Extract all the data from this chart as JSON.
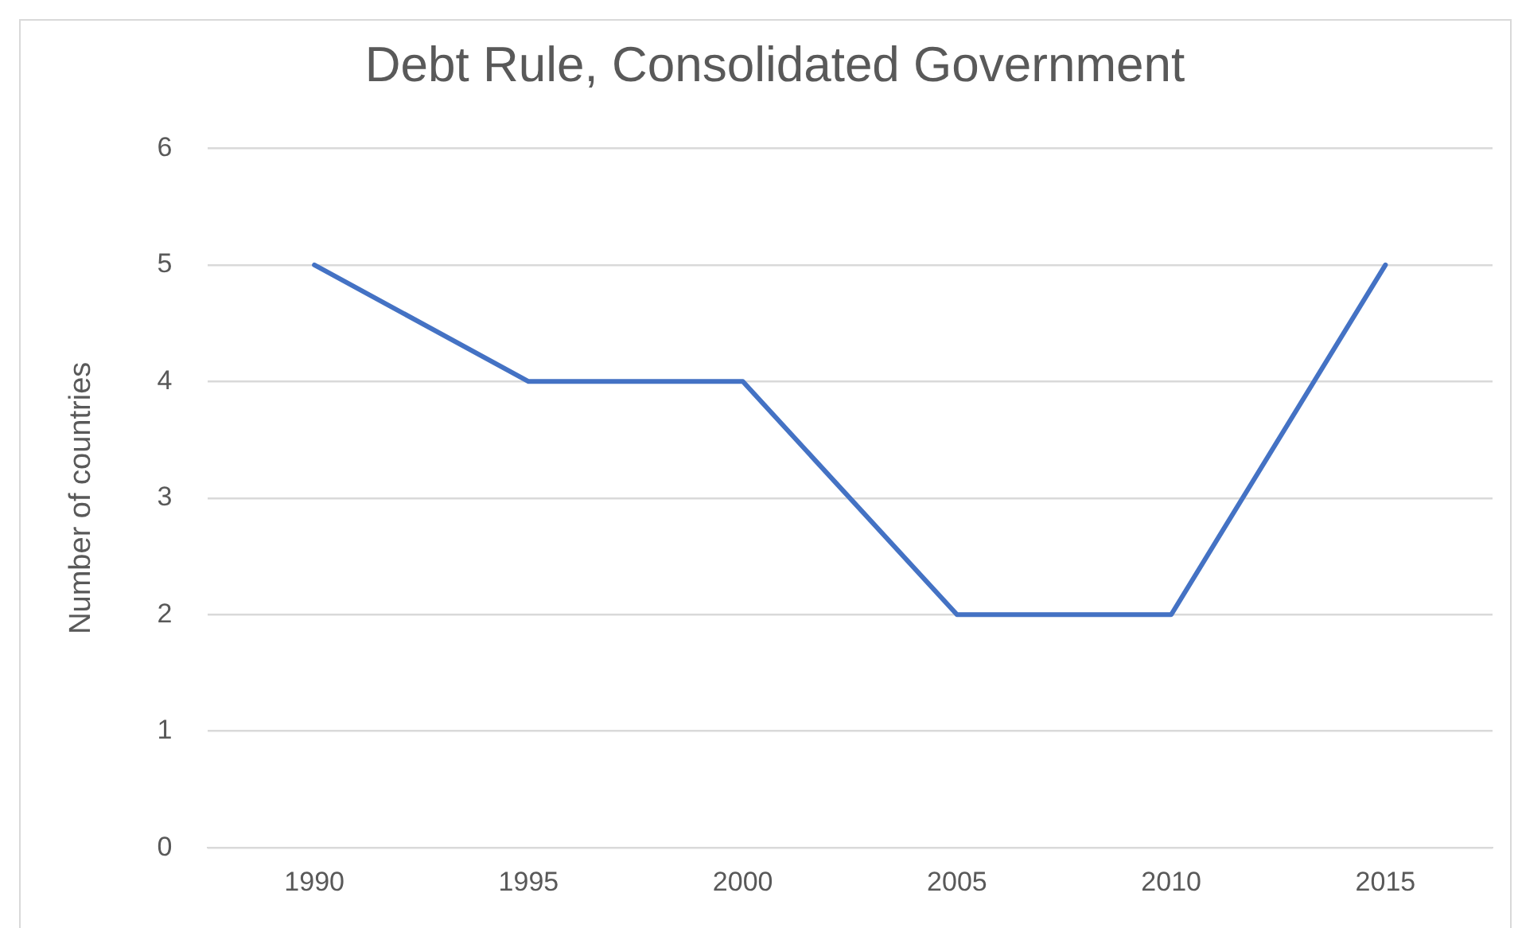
{
  "chart_data": {
    "type": "line",
    "title": "Debt Rule, Consolidated Government",
    "ylabel": "Number of countries",
    "categories": [
      "1990",
      "1995",
      "2000",
      "2005",
      "2010",
      "2015"
    ],
    "series": [
      {
        "color": "#4472c4",
        "values": [
          5,
          4,
          4,
          2,
          2,
          5
        ]
      }
    ],
    "ylim": [
      0,
      6
    ],
    "yticks": [
      0,
      1,
      2,
      3,
      4,
      5,
      6
    ],
    "grid": "y",
    "legend": false,
    "marker": "none",
    "line_style": "solid"
  }
}
